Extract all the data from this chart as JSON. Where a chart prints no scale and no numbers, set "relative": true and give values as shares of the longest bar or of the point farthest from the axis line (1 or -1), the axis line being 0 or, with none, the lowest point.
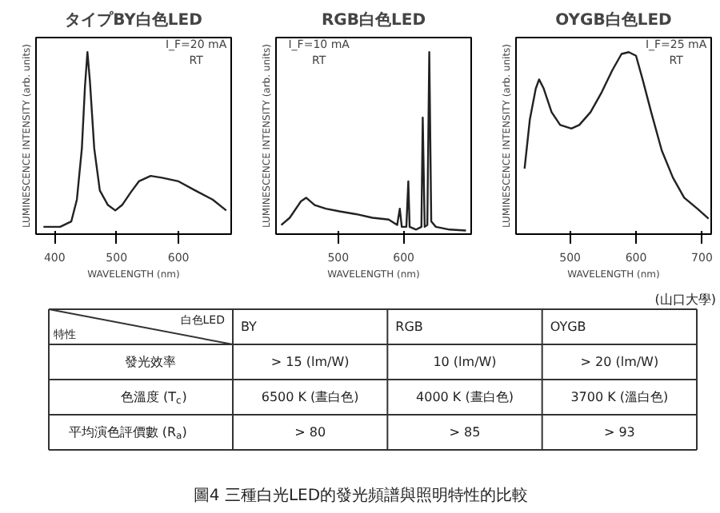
{
  "chart_data": [
    {
      "type": "line",
      "title": "タイプBY白色LED",
      "xlabel": "WAVELENGTH (nm)",
      "ylabel": "LUMINESCENCE INTENSITY (arb. units)",
      "relative": true,
      "xlim": [
        370,
        685
      ],
      "xticks": [
        400,
        500,
        600
      ],
      "annotations": [
        "I_F=20 mA",
        "RT"
      ],
      "grid": false,
      "series": [
        {
          "color": "#222222",
          "x": [
            382,
            409,
            427,
            436,
            444,
            449,
            453,
            457,
            464,
            473,
            486,
            498,
            509,
            523,
            536,
            555,
            573,
            600,
            627,
            655,
            677
          ],
          "values": [
            0.04,
            0.04,
            0.07,
            0.19,
            0.47,
            0.81,
            1.0,
            0.84,
            0.47,
            0.24,
            0.16,
            0.13,
            0.16,
            0.23,
            0.29,
            0.32,
            0.31,
            0.29,
            0.24,
            0.19,
            0.13
          ]
        }
      ]
    },
    {
      "type": "line",
      "title": "RGB白色LED",
      "xlabel": "WAVELENGTH (nm)",
      "ylabel": "LUMINESCENCE INTENSITY (arb. units)",
      "relative": true,
      "xlim": [
        405,
        703
      ],
      "xticks": [
        500,
        600
      ],
      "annotations": [
        "I_F=10 mA",
        "RT"
      ],
      "grid": false,
      "series": [
        {
          "color": "#222222",
          "x": [
            413,
            426,
            443,
            451,
            464,
            481,
            502,
            527,
            552,
            577,
            590,
            594,
            597,
            604,
            607,
            609,
            619,
            627,
            629,
            632,
            636,
            639,
            642,
            649,
            670,
            695
          ],
          "values": [
            0.05,
            0.09,
            0.18,
            0.2,
            0.16,
            0.14,
            0.125,
            0.11,
            0.09,
            0.08,
            0.05,
            0.14,
            0.04,
            0.04,
            0.29,
            0.04,
            0.025,
            0.04,
            0.64,
            0.04,
            0.05,
            1.0,
            0.07,
            0.04,
            0.025,
            0.02
          ]
        }
      ]
    },
    {
      "type": "line",
      "title": "OYGB白色LED",
      "xlabel": "WAVELENGTH (nm)",
      "ylabel": "LUMINESCENCE INTENSITY (arb. units)",
      "relative": true,
      "xlim": [
        418,
        714
      ],
      "xticks": [
        500,
        600,
        700
      ],
      "annotations": [
        "I_F=25 mA",
        "RT"
      ],
      "grid": false,
      "series": [
        {
          "color": "#222222",
          "x": [
            431,
            439,
            448,
            453,
            460,
            472,
            485,
            502,
            514,
            531,
            548,
            564,
            578,
            589,
            600,
            610,
            623,
            639,
            656,
            673,
            693,
            710
          ],
          "values": [
            0.36,
            0.63,
            0.8,
            0.85,
            0.8,
            0.67,
            0.6,
            0.58,
            0.6,
            0.67,
            0.78,
            0.9,
            0.99,
            1.0,
            0.98,
            0.85,
            0.67,
            0.46,
            0.31,
            0.2,
            0.14,
            0.085
          ]
        }
      ]
    },
    {
      "type": "other",
      "categories": [
        "BY",
        "RGB",
        "OYGB"
      ],
      "y_categories": [
        "發光效率",
        "色溫度 (T$_{c}$)",
        "平均演色評價數 (R$_{a}$)"
      ],
      "cell_labels": [
        [
          "> 15 (lm/W)",
          "10 (lm/W)",
          "> 20 (lm/W)"
        ],
        [
          "6500 K (晝白色)",
          "4000 K (晝白色)",
          "3700 K (溫白色)"
        ],
        [
          "> 80",
          "> 85",
          "> 93"
        ]
      ],
      "annotations": [
        "白色LED",
        "特性",
        "(山口大學)",
        "圖4 三種白光LED的發光頻譜與照明特性的比較"
      ]
    }
  ]
}
